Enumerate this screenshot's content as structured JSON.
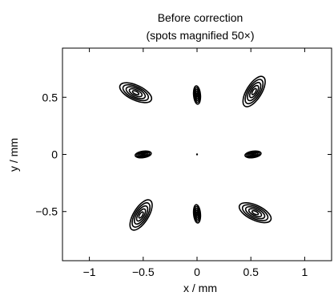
{
  "chart_data": {
    "type": "contour",
    "title_line1": "Before correction",
    "title_line2": "(spots magnified 50×)",
    "xlabel": "x / mm",
    "ylabel": "y / mm",
    "xlim": [
      -1.25,
      1.25
    ],
    "ylim": [
      -0.93,
      0.93
    ],
    "xticks": [
      -1,
      -0.5,
      0,
      0.5,
      1
    ],
    "xtick_labels": [
      "−1",
      "−0.5",
      "0",
      "0.5",
      "1"
    ],
    "yticks": [
      -0.5,
      0,
      0.5
    ],
    "ytick_labels": [
      "−0.5",
      "0",
      "0.5"
    ],
    "contour_levels": 5,
    "line_color": "#000000",
    "spots": [
      {
        "name": "top-left",
        "x": -0.57,
        "y": 0.54,
        "semi_major": 0.16,
        "semi_minor": 0.065,
        "angle_deg": -25
      },
      {
        "name": "top-center",
        "x": 0.0,
        "y": 0.52,
        "semi_major": 0.085,
        "semi_minor": 0.03,
        "angle_deg": -85
      },
      {
        "name": "top-right",
        "x": 0.53,
        "y": 0.55,
        "semi_major": 0.16,
        "semi_minor": 0.065,
        "angle_deg": 58
      },
      {
        "name": "mid-left",
        "x": -0.5,
        "y": 0.0,
        "semi_major": 0.075,
        "semi_minor": 0.028,
        "angle_deg": 8
      },
      {
        "name": "center",
        "x": 0.0,
        "y": 0.0,
        "semi_major": 0.008,
        "semi_minor": 0.008,
        "angle_deg": 0
      },
      {
        "name": "mid-right",
        "x": 0.52,
        "y": 0.0,
        "semi_major": 0.075,
        "semi_minor": 0.028,
        "angle_deg": 8
      },
      {
        "name": "bottom-left",
        "x": -0.52,
        "y": -0.53,
        "semi_major": 0.16,
        "semi_minor": 0.065,
        "angle_deg": 58
      },
      {
        "name": "bottom-center",
        "x": 0.0,
        "y": -0.52,
        "semi_major": 0.085,
        "semi_minor": 0.03,
        "angle_deg": -85
      },
      {
        "name": "bottom-right",
        "x": 0.54,
        "y": -0.51,
        "semi_major": 0.16,
        "semi_minor": 0.065,
        "angle_deg": -25
      }
    ],
    "grid": false,
    "legend": "none"
  }
}
